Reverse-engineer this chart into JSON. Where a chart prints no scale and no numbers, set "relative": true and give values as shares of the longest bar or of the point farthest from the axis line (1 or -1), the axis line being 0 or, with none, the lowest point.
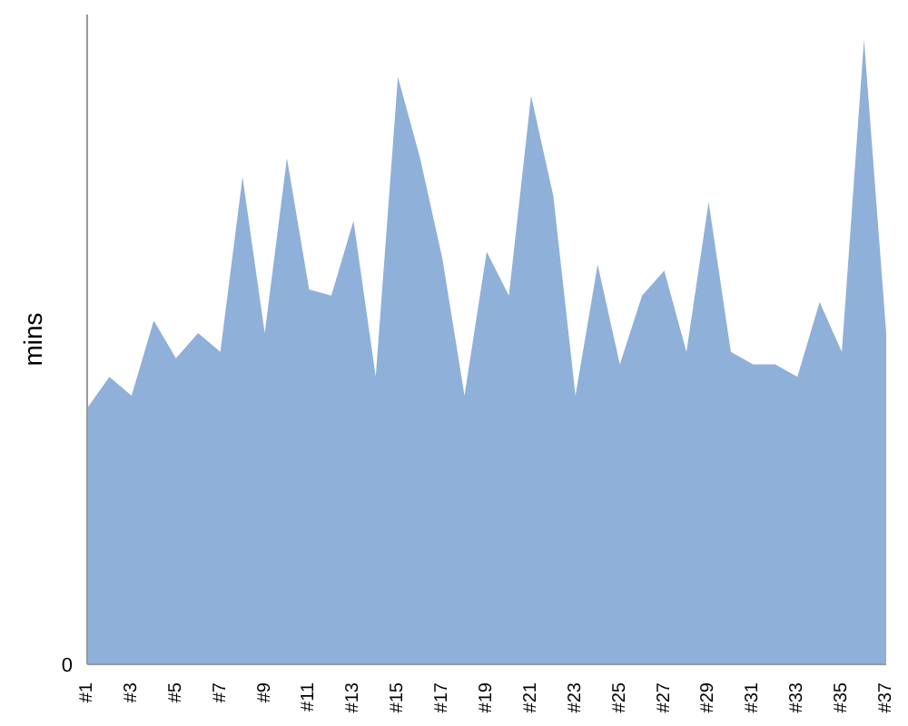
{
  "chart_data": {
    "type": "area",
    "ylabel": "mins",
    "relative": true,
    "annotations": [
      "0"
    ],
    "color": "#8fb0d9",
    "categories": [
      "#1",
      null,
      "#3",
      null,
      "#5",
      null,
      "#7",
      null,
      "#9",
      null,
      "#11",
      null,
      "#13",
      null,
      "#15",
      null,
      "#17",
      null,
      "#19",
      null,
      "#21",
      null,
      "#23",
      null,
      "#25",
      null,
      "#27",
      null,
      "#29",
      null,
      "#31",
      null,
      "#33",
      null,
      "#35",
      null,
      "#37"
    ],
    "values": [
      0.41,
      0.46,
      0.43,
      0.55,
      0.49,
      0.53,
      0.5,
      0.78,
      0.53,
      0.81,
      0.6,
      0.59,
      0.71,
      0.46,
      0.94,
      0.81,
      0.65,
      0.43,
      0.66,
      0.59,
      0.91,
      0.75,
      0.43,
      0.64,
      0.48,
      0.59,
      0.63,
      0.5,
      0.74,
      0.5,
      0.48,
      0.48,
      0.46,
      0.58,
      0.5,
      1,
      0.53
    ]
  }
}
